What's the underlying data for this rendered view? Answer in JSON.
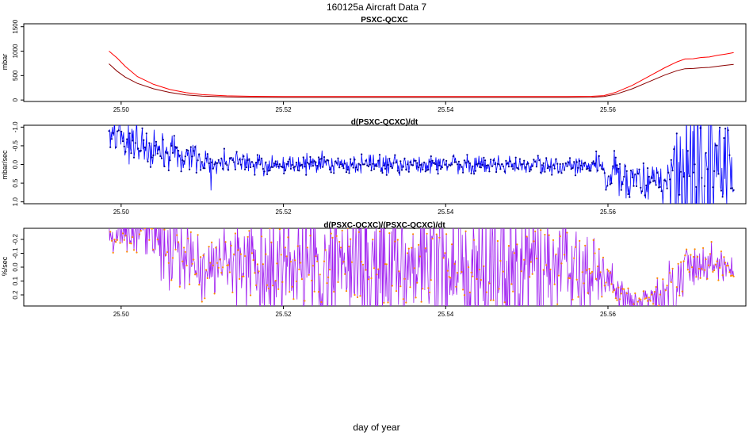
{
  "title": "160125a   Aircraft Data 7",
  "xlabel": "day of year",
  "chart_data": [
    {
      "type": "line",
      "title": "PSXC-QCXC",
      "ylabel": "mbar",
      "xlim": [
        25.488,
        25.577
      ],
      "ylim": [
        -30,
        1560
      ],
      "xticks": [
        25.5,
        25.52,
        25.54,
        25.56
      ],
      "xtick_labels": [
        "25.50",
        "25.52",
        "25.54",
        "25.56"
      ],
      "yticks": [
        0,
        500,
        1000,
        1500
      ],
      "ytick_labels": [
        "0",
        "500",
        "1000",
        "1500"
      ],
      "series": [
        {
          "color": "#ff0000",
          "x": [
            25.4985,
            25.4995,
            25.5005,
            25.502,
            25.504,
            25.506,
            25.508,
            25.51,
            25.513,
            25.516,
            25.52,
            25.525,
            25.53,
            25.535,
            25.54,
            25.545,
            25.55,
            25.555,
            25.558,
            25.5595,
            25.561,
            25.563,
            25.565,
            25.567,
            25.5685,
            25.5695,
            25.5705,
            25.5715,
            25.5725,
            25.5735,
            25.5745,
            25.5755
          ],
          "y": [
            1000,
            860,
            690,
            480,
            320,
            215,
            150,
            110,
            85,
            75,
            70,
            70,
            70,
            70,
            70,
            70,
            70,
            70,
            75,
            90,
            160,
            300,
            480,
            660,
            780,
            840,
            845,
            870,
            880,
            915,
            940,
            970
          ]
        },
        {
          "color": "#8b0000",
          "x": [
            25.4985,
            25.4995,
            25.5005,
            25.502,
            25.504,
            25.506,
            25.508,
            25.51,
            25.513,
            25.516,
            25.52,
            25.525,
            25.53,
            25.535,
            25.54,
            25.545,
            25.55,
            25.555,
            25.558,
            25.5595,
            25.561,
            25.563,
            25.565,
            25.567,
            25.5685,
            25.5695,
            25.5705,
            25.5715,
            25.5725,
            25.5735,
            25.5745,
            25.5755
          ],
          "y": [
            740,
            590,
            470,
            340,
            230,
            155,
            105,
            78,
            62,
            55,
            52,
            52,
            52,
            52,
            52,
            52,
            52,
            52,
            55,
            70,
            120,
            230,
            370,
            510,
            600,
            640,
            645,
            660,
            668,
            690,
            710,
            730
          ]
        }
      ]
    },
    {
      "type": "line",
      "title": "d(PSXC-QCXC)/dt",
      "ylabel": "mbar/sec",
      "xlim": [
        25.488,
        25.577
      ],
      "ylim": [
        1.05,
        -1.05
      ],
      "xticks": [
        25.5,
        25.52,
        25.54,
        25.56
      ],
      "xtick_labels": [
        "25.50",
        "25.52",
        "25.54",
        "25.56"
      ],
      "yticks": [
        -1.0,
        -0.5,
        0.0,
        0.5,
        1.0
      ],
      "ytick_labels": [
        "-1.0",
        "-0.5",
        "0.0",
        "0.5",
        "1.0"
      ],
      "series": [
        {
          "color": "#0000ff",
          "marker_color": "#00008b",
          "x": [
            25.4985,
            25.5,
            25.502,
            25.504,
            25.506,
            25.508,
            25.51,
            25.513,
            25.516,
            25.52,
            25.525,
            25.53,
            25.535,
            25.54,
            25.545,
            25.55,
            25.555,
            25.558,
            25.5595,
            25.561,
            25.563,
            25.565,
            25.567,
            25.5685,
            25.57,
            25.5715,
            25.573,
            25.5745,
            25.5755
          ],
          "y": [
            -0.95,
            -0.75,
            -0.55,
            -0.42,
            -0.3,
            -0.2,
            -0.1,
            -0.05,
            0.0,
            0.0,
            0.0,
            0.0,
            0.0,
            0.0,
            0.0,
            0.0,
            0.0,
            0.0,
            0.2,
            0.3,
            0.4,
            0.48,
            0.5,
            0.3,
            0.1,
            0.0,
            0.0,
            0.0,
            0.0
          ],
          "spread": [
            0.3,
            0.3,
            0.28,
            0.25,
            0.22,
            0.2,
            0.18,
            0.15,
            0.13,
            0.12,
            0.12,
            0.12,
            0.12,
            0.12,
            0.12,
            0.12,
            0.12,
            0.12,
            0.3,
            0.3,
            0.25,
            0.25,
            0.3,
            0.8,
            1.0,
            1.0,
            1.0,
            1.0,
            1.0
          ]
        }
      ]
    },
    {
      "type": "line",
      "title": "d(PSXC-QCXC)/(PSXC-QCXC)/dt",
      "ylabel": "%/sec",
      "xlim": [
        25.488,
        25.577
      ],
      "ylim": [
        0.28,
        -0.28
      ],
      "xticks": [
        25.5,
        25.52,
        25.54,
        25.56
      ],
      "xtick_labels": [
        "25.50",
        "25.52",
        "25.54",
        "25.56"
      ],
      "yticks": [
        -0.2,
        -0.1,
        0.0,
        0.1,
        0.2
      ],
      "ytick_labels": [
        "-0.2",
        "-0.1",
        "0.0",
        "0.1",
        "0.2"
      ],
      "series": [
        {
          "color": "#a020f0",
          "marker_color": "#ff8c00",
          "x": [
            25.4985,
            25.5,
            25.502,
            25.504,
            25.506,
            25.508,
            25.51,
            25.513,
            25.516,
            25.52,
            25.525,
            25.53,
            25.535,
            25.54,
            25.545,
            25.55,
            25.555,
            25.558,
            25.5595,
            25.561,
            25.563,
            25.565,
            25.567,
            25.5685,
            25.57,
            25.5715,
            25.573,
            25.5745,
            25.5755
          ],
          "y": [
            -0.2,
            -0.25,
            -0.26,
            -0.22,
            -0.15,
            -0.05,
            0.0,
            0.0,
            0.0,
            0.0,
            0.0,
            0.0,
            0.0,
            0.0,
            0.0,
            0.0,
            0.0,
            0.0,
            0.1,
            0.2,
            0.24,
            0.26,
            0.22,
            0.1,
            0.0,
            0.0,
            0.0,
            0.0,
            0.0
          ],
          "spread": [
            0.08,
            0.1,
            0.1,
            0.12,
            0.14,
            0.12,
            0.1,
            0.15,
            0.2,
            0.25,
            0.25,
            0.25,
            0.25,
            0.25,
            0.25,
            0.22,
            0.2,
            0.15,
            0.08,
            0.06,
            0.05,
            0.05,
            0.08,
            0.15,
            0.1,
            0.06,
            0.06,
            0.06,
            0.06
          ]
        }
      ]
    }
  ]
}
